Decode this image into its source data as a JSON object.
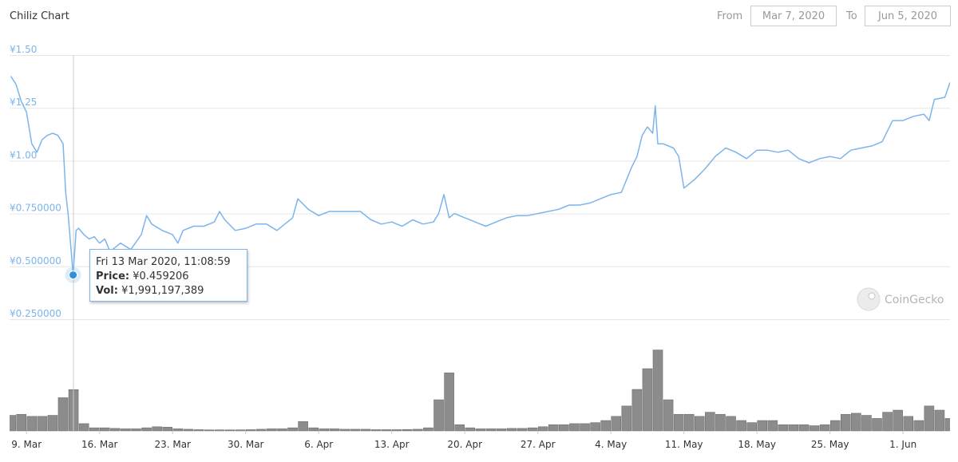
{
  "header": {
    "title": "Chiliz Chart",
    "from_label": "From",
    "from": "Mar 7, 2020",
    "to_label": "To",
    "to": "Jun 5, 2020"
  },
  "watermark": "CoinGecko",
  "chart_data": [
    {
      "type": "line",
      "color": "#7cb5ec",
      "grid": true,
      "xlim": [
        "2020-03-07T09:00",
        "2020-06-05T12:00"
      ],
      "ylim": [
        0.25,
        1.5
      ],
      "yticks": [
        {
          "value": 0.25,
          "label": "¥0.250000"
        },
        {
          "value": 0.5,
          "label": "¥0.500000"
        },
        {
          "value": 0.75,
          "label": "¥0.750000"
        },
        {
          "value": 1,
          "label": "¥1.00"
        },
        {
          "value": 1.25,
          "label": "¥1.25"
        },
        {
          "value": 1.5,
          "label": "¥1.50"
        }
      ],
      "xticks": [
        {
          "value": "2020-03-09",
          "label": "9. Mar"
        },
        {
          "value": "2020-03-16",
          "label": "16. Mar"
        },
        {
          "value": "2020-03-23",
          "label": "23. Mar"
        },
        {
          "value": "2020-03-30",
          "label": "30. Mar"
        },
        {
          "value": "2020-04-06",
          "label": "6. Apr"
        },
        {
          "value": "2020-04-13",
          "label": "13. Apr"
        },
        {
          "value": "2020-04-20",
          "label": "20. Apr"
        },
        {
          "value": "2020-04-27",
          "label": "27. Apr"
        },
        {
          "value": "2020-05-04",
          "label": "4. May"
        },
        {
          "value": "2020-05-11",
          "label": "11. May"
        },
        {
          "value": "2020-05-18",
          "label": "18. May"
        },
        {
          "value": "2020-05-25",
          "label": "25. May"
        },
        {
          "value": "2020-06-01",
          "label": "1. Jun"
        }
      ],
      "x": [
        "2020-03-07T12:00",
        "2020-03-08T00:00",
        "2020-03-08T12:00",
        "2020-03-09T00:00",
        "2020-03-09T12:00",
        "2020-03-10T00:00",
        "2020-03-10T12:00",
        "2020-03-11T00:00",
        "2020-03-11T12:00",
        "2020-03-12T00:00",
        "2020-03-12T12:00",
        "2020-03-12T18:00",
        "2020-03-13T00:00",
        "2020-03-13T11:08:59",
        "2020-03-13T18:00",
        "2020-03-14T00:00",
        "2020-03-14T12:00",
        "2020-03-15T00:00",
        "2020-03-15T12:00",
        "2020-03-16T00:00",
        "2020-03-16T12:00",
        "2020-03-17T00:00",
        "2020-03-17T12:00",
        "2020-03-18T00:00",
        "2020-03-19T00:00",
        "2020-03-20T00:00",
        "2020-03-20T12:00",
        "2020-03-21T00:00",
        "2020-03-22T00:00",
        "2020-03-23T00:00",
        "2020-03-23T12:00",
        "2020-03-24T00:00",
        "2020-03-25T00:00",
        "2020-03-26T00:00",
        "2020-03-27T00:00",
        "2020-03-27T12:00",
        "2020-03-28T00:00",
        "2020-03-29T00:00",
        "2020-03-30T00:00",
        "2020-03-31T00:00",
        "2020-04-01T00:00",
        "2020-04-02T00:00",
        "2020-04-03T00:00",
        "2020-04-03T12:00",
        "2020-04-04T00:00",
        "2020-04-05T00:00",
        "2020-04-06T00:00",
        "2020-04-07T00:00",
        "2020-04-08T00:00",
        "2020-04-09T00:00",
        "2020-04-10T00:00",
        "2020-04-11T00:00",
        "2020-04-12T00:00",
        "2020-04-13T00:00",
        "2020-04-14T00:00",
        "2020-04-15T00:00",
        "2020-04-16T00:00",
        "2020-04-17T00:00",
        "2020-04-17T12:00",
        "2020-04-18T00:00",
        "2020-04-18T12:00",
        "2020-04-19T00:00",
        "2020-04-20T00:00",
        "2020-04-21T00:00",
        "2020-04-22T00:00",
        "2020-04-23T00:00",
        "2020-04-24T00:00",
        "2020-04-25T00:00",
        "2020-04-26T00:00",
        "2020-04-27T00:00",
        "2020-04-28T00:00",
        "2020-04-29T00:00",
        "2020-04-30T00:00",
        "2020-05-01T00:00",
        "2020-05-02T00:00",
        "2020-05-03T00:00",
        "2020-05-04T00:00",
        "2020-05-05T00:00",
        "2020-05-05T12:00",
        "2020-05-06T00:00",
        "2020-05-06T12:00",
        "2020-05-07T00:00",
        "2020-05-07T12:00",
        "2020-05-08T00:00",
        "2020-05-08T06:00",
        "2020-05-08T12:00",
        "2020-05-09T00:00",
        "2020-05-10T00:00",
        "2020-05-10T12:00",
        "2020-05-11T00:00",
        "2020-05-12T00:00",
        "2020-05-13T00:00",
        "2020-05-14T00:00",
        "2020-05-15T00:00",
        "2020-05-16T00:00",
        "2020-05-17T00:00",
        "2020-05-18T00:00",
        "2020-05-19T00:00",
        "2020-05-20T00:00",
        "2020-05-21T00:00",
        "2020-05-22T00:00",
        "2020-05-23T00:00",
        "2020-05-24T00:00",
        "2020-05-25T00:00",
        "2020-05-26T00:00",
        "2020-05-27T00:00",
        "2020-05-28T00:00",
        "2020-05-29T00:00",
        "2020-05-30T00:00",
        "2020-05-31T00:00",
        "2020-06-01T00:00",
        "2020-06-02T00:00",
        "2020-06-03T00:00",
        "2020-06-03T12:00",
        "2020-06-04T00:00",
        "2020-06-05T00:00",
        "2020-06-05T12:00"
      ],
      "values": [
        1.4,
        1.36,
        1.28,
        1.23,
        1.08,
        1.04,
        1.1,
        1.12,
        1.13,
        1.12,
        1.08,
        0.85,
        0.74,
        0.459206,
        0.67,
        0.68,
        0.65,
        0.63,
        0.64,
        0.61,
        0.63,
        0.57,
        0.59,
        0.61,
        0.58,
        0.65,
        0.74,
        0.7,
        0.67,
        0.65,
        0.61,
        0.67,
        0.69,
        0.69,
        0.71,
        0.76,
        0.72,
        0.67,
        0.68,
        0.7,
        0.7,
        0.67,
        0.71,
        0.73,
        0.82,
        0.77,
        0.74,
        0.76,
        0.76,
        0.76,
        0.76,
        0.72,
        0.7,
        0.71,
        0.69,
        0.72,
        0.7,
        0.71,
        0.75,
        0.84,
        0.73,
        0.75,
        0.73,
        0.71,
        0.69,
        0.71,
        0.73,
        0.74,
        0.74,
        0.75,
        0.76,
        0.77,
        0.79,
        0.79,
        0.8,
        0.82,
        0.84,
        0.85,
        0.91,
        0.97,
        1.02,
        1.12,
        1.16,
        1.13,
        1.26,
        1.08,
        1.08,
        1.06,
        1.02,
        0.87,
        0.91,
        0.96,
        1.02,
        1.06,
        1.04,
        1.01,
        1.05,
        1.05,
        1.04,
        1.05,
        1.01,
        0.99,
        1.01,
        1.02,
        1.01,
        1.05,
        1.06,
        1.07,
        1.09,
        1.19,
        1.19,
        1.21,
        1.22,
        1.19,
        1.29,
        1.3,
        1.37
      ],
      "tooltip": {
        "date": "Fri 13 Mar 2020, 11:08:59",
        "price_label": "Price:",
        "price": "¥0.459206",
        "vol_label": "Vol:",
        "vol": "¥1,991,197,389"
      }
    },
    {
      "type": "bar",
      "color": "#8c8c8c",
      "ylim": [
        0,
        4500000000
      ],
      "x": [
        "2020-03-07",
        "2020-03-08",
        "2020-03-09",
        "2020-03-10",
        "2020-03-11",
        "2020-03-12",
        "2020-03-13",
        "2020-03-14",
        "2020-03-15",
        "2020-03-16",
        "2020-03-17",
        "2020-03-18",
        "2020-03-19",
        "2020-03-20",
        "2020-03-21",
        "2020-03-22",
        "2020-03-23",
        "2020-03-24",
        "2020-03-25",
        "2020-03-26",
        "2020-03-27",
        "2020-03-28",
        "2020-03-29",
        "2020-03-30",
        "2020-03-31",
        "2020-04-01",
        "2020-04-02",
        "2020-04-03",
        "2020-04-04",
        "2020-04-05",
        "2020-04-06",
        "2020-04-07",
        "2020-04-08",
        "2020-04-09",
        "2020-04-10",
        "2020-04-11",
        "2020-04-12",
        "2020-04-13",
        "2020-04-14",
        "2020-04-15",
        "2020-04-16",
        "2020-04-17",
        "2020-04-18",
        "2020-04-19",
        "2020-04-20",
        "2020-04-21",
        "2020-04-22",
        "2020-04-23",
        "2020-04-24",
        "2020-04-25",
        "2020-04-26",
        "2020-04-27",
        "2020-04-28",
        "2020-04-29",
        "2020-04-30",
        "2020-05-01",
        "2020-05-02",
        "2020-05-03",
        "2020-05-04",
        "2020-05-05",
        "2020-05-06",
        "2020-05-07",
        "2020-05-08",
        "2020-05-09",
        "2020-05-10",
        "2020-05-11",
        "2020-05-12",
        "2020-05-13",
        "2020-05-14",
        "2020-05-15",
        "2020-05-16",
        "2020-05-17",
        "2020-05-18",
        "2020-05-19",
        "2020-05-20",
        "2020-05-21",
        "2020-05-22",
        "2020-05-23",
        "2020-05-24",
        "2020-05-25",
        "2020-05-26",
        "2020-05-27",
        "2020-05-28",
        "2020-05-29",
        "2020-05-30",
        "2020-05-31",
        "2020-06-01",
        "2020-06-02",
        "2020-06-03",
        "2020-06-04",
        "2020-06-05"
      ],
      "values": [
        750000000.0,
        800000000.0,
        700000000.0,
        700000000.0,
        750000000.0,
        1600000000.0,
        1991197389,
        350000000.0,
        150000000.0,
        150000000.0,
        120000000.0,
        100000000.0,
        100000000.0,
        150000000.0,
        200000000.0,
        180000000.0,
        100000000.0,
        80000000.0,
        60000000.0,
        50000000.0,
        50000000.0,
        50000000.0,
        50000000.0,
        60000000.0,
        80000000.0,
        100000000.0,
        100000000.0,
        150000000.0,
        450000000.0,
        150000000.0,
        100000000.0,
        100000000.0,
        80000000.0,
        80000000.0,
        80000000.0,
        60000000.0,
        60000000.0,
        60000000.0,
        70000000.0,
        80000000.0,
        150000000.0,
        1500000000.0,
        2800000000.0,
        300000000.0,
        150000000.0,
        100000000.0,
        100000000.0,
        100000000.0,
        120000000.0,
        120000000.0,
        150000000.0,
        200000000.0,
        300000000.0,
        300000000.0,
        350000000.0,
        350000000.0,
        400000000.0,
        500000000.0,
        700000000.0,
        1200000000.0,
        2000000000.0,
        3000000000.0,
        3900000000.0,
        1500000000.0,
        800000000.0,
        800000000.0,
        700000000.0,
        900000000.0,
        800000000.0,
        700000000.0,
        500000000.0,
        400000000.0,
        500000000.0,
        500000000.0,
        300000000.0,
        300000000.0,
        300000000.0,
        250000000.0,
        300000000.0,
        500000000.0,
        800000000.0,
        850000000.0,
        750000000.0,
        600000000.0,
        900000000.0,
        1000000000.0,
        700000000.0,
        500000000.0,
        1200000000.0,
        1000000000.0,
        600000000.0
      ]
    }
  ]
}
